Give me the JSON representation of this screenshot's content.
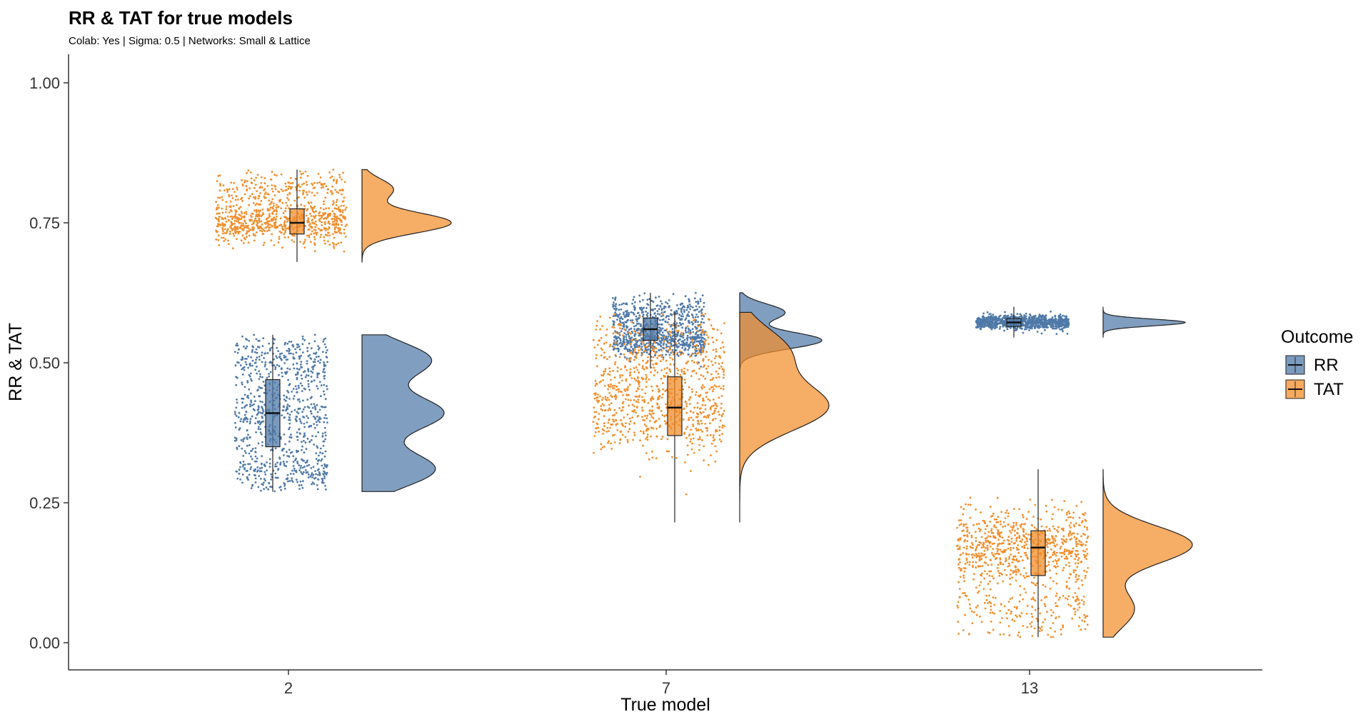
{
  "chart_data": {
    "type": "raincloud",
    "title": "RR & TAT for true models",
    "subtitle": "Colab: Yes | Sigma: 0.5 | Networks: Small & Lattice",
    "xlabel": "True model",
    "ylabel": "RR & TAT",
    "categories": [
      "2",
      "7",
      "13"
    ],
    "ylim": [
      -0.05,
      1.05
    ],
    "yticks": [
      "0.00",
      "0.25",
      "0.50",
      "0.75",
      "1.00"
    ],
    "grid": false,
    "legend": {
      "title": "Outcome",
      "position": "right",
      "items": [
        {
          "name": "RR",
          "color": "#4f79a8"
        },
        {
          "name": "TAT",
          "color": "#f28e2b"
        }
      ]
    },
    "series": [
      {
        "name": "RR",
        "color": "#4f79a8",
        "groups": [
          {
            "category": "2",
            "min": 0.27,
            "q1": 0.35,
            "median": 0.41,
            "q3": 0.47,
            "max": 0.55,
            "modes": [
              [
                0.31,
                0.9
              ],
              [
                0.41,
                1.0
              ],
              [
                0.505,
                0.85
              ]
            ]
          },
          {
            "category": "7",
            "min": 0.49,
            "q1": 0.54,
            "median": 0.56,
            "q3": 0.58,
            "max": 0.625,
            "modes": [
              [
                0.54,
                1.0
              ],
              [
                0.59,
                0.55
              ]
            ]
          },
          {
            "category": "13",
            "min": 0.545,
            "q1": 0.565,
            "median": 0.572,
            "q3": 0.579,
            "max": 0.6,
            "modes": [
              [
                0.572,
                1.0
              ]
            ]
          }
        ]
      },
      {
        "name": "TAT",
        "color": "#f28e2b",
        "groups": [
          {
            "category": "2",
            "min": 0.68,
            "q1": 0.73,
            "median": 0.75,
            "q3": 0.775,
            "max": 0.845,
            "modes": [
              [
                0.75,
                1.0
              ],
              [
                0.81,
                0.35
              ]
            ]
          },
          {
            "category": "7",
            "min": 0.215,
            "q1": 0.37,
            "median": 0.42,
            "q3": 0.475,
            "max": 0.59,
            "modes": [
              [
                0.42,
                1.0
              ],
              [
                0.52,
                0.55
              ]
            ]
          },
          {
            "category": "13",
            "min": 0.01,
            "q1": 0.12,
            "median": 0.17,
            "q3": 0.2,
            "max": 0.31,
            "modes": [
              [
                0.175,
                1.0
              ],
              [
                0.06,
                0.35
              ]
            ]
          }
        ]
      }
    ]
  }
}
